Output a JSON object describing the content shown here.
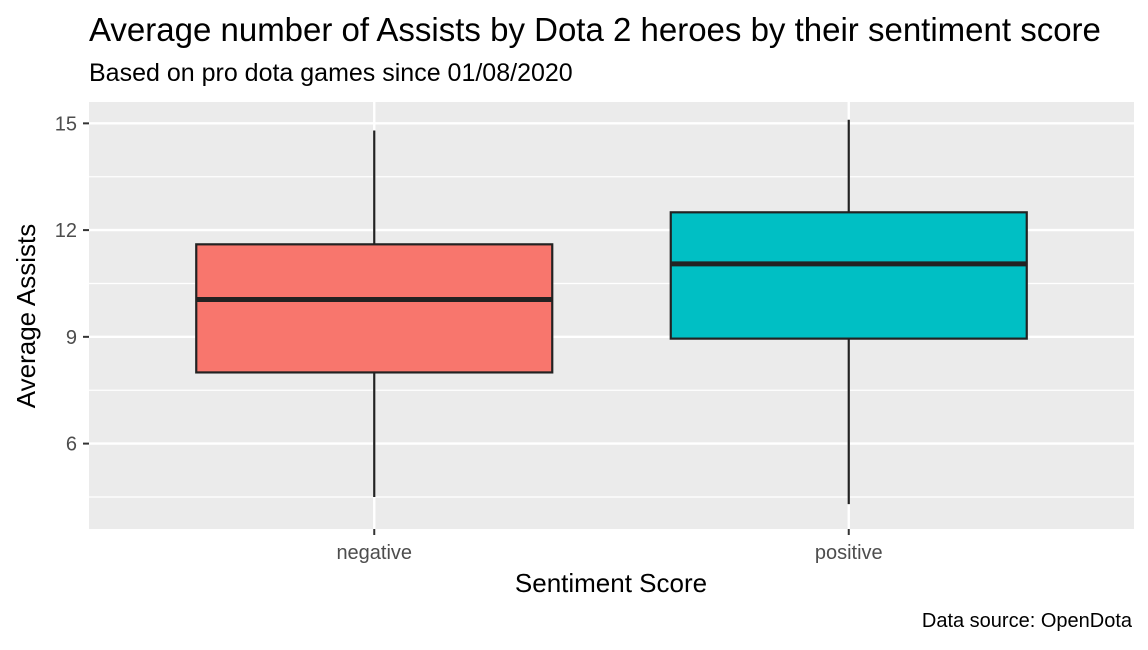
{
  "chart_data": {
    "type": "boxplot",
    "title": "Average number of Assists by Dota 2 heroes by their sentiment score",
    "subtitle": "Based on pro dota games since 01/08/2020",
    "xlabel": "Sentiment Score",
    "ylabel": "Average Assists",
    "caption": "Data source: OpenDota",
    "ylim": [
      3.6,
      15.6
    ],
    "yticks": [
      6,
      9,
      12,
      15
    ],
    "grid": true,
    "categories": [
      "negative",
      "positive"
    ],
    "boxes": [
      {
        "category": "negative",
        "min": 4.5,
        "q1": 8.0,
        "median": 10.05,
        "q3": 11.6,
        "max": 14.8,
        "color": "#F8766D"
      },
      {
        "category": "positive",
        "min": 4.3,
        "q1": 8.95,
        "median": 11.05,
        "q3": 12.5,
        "max": 15.1,
        "color": "#00BFC4"
      }
    ]
  }
}
